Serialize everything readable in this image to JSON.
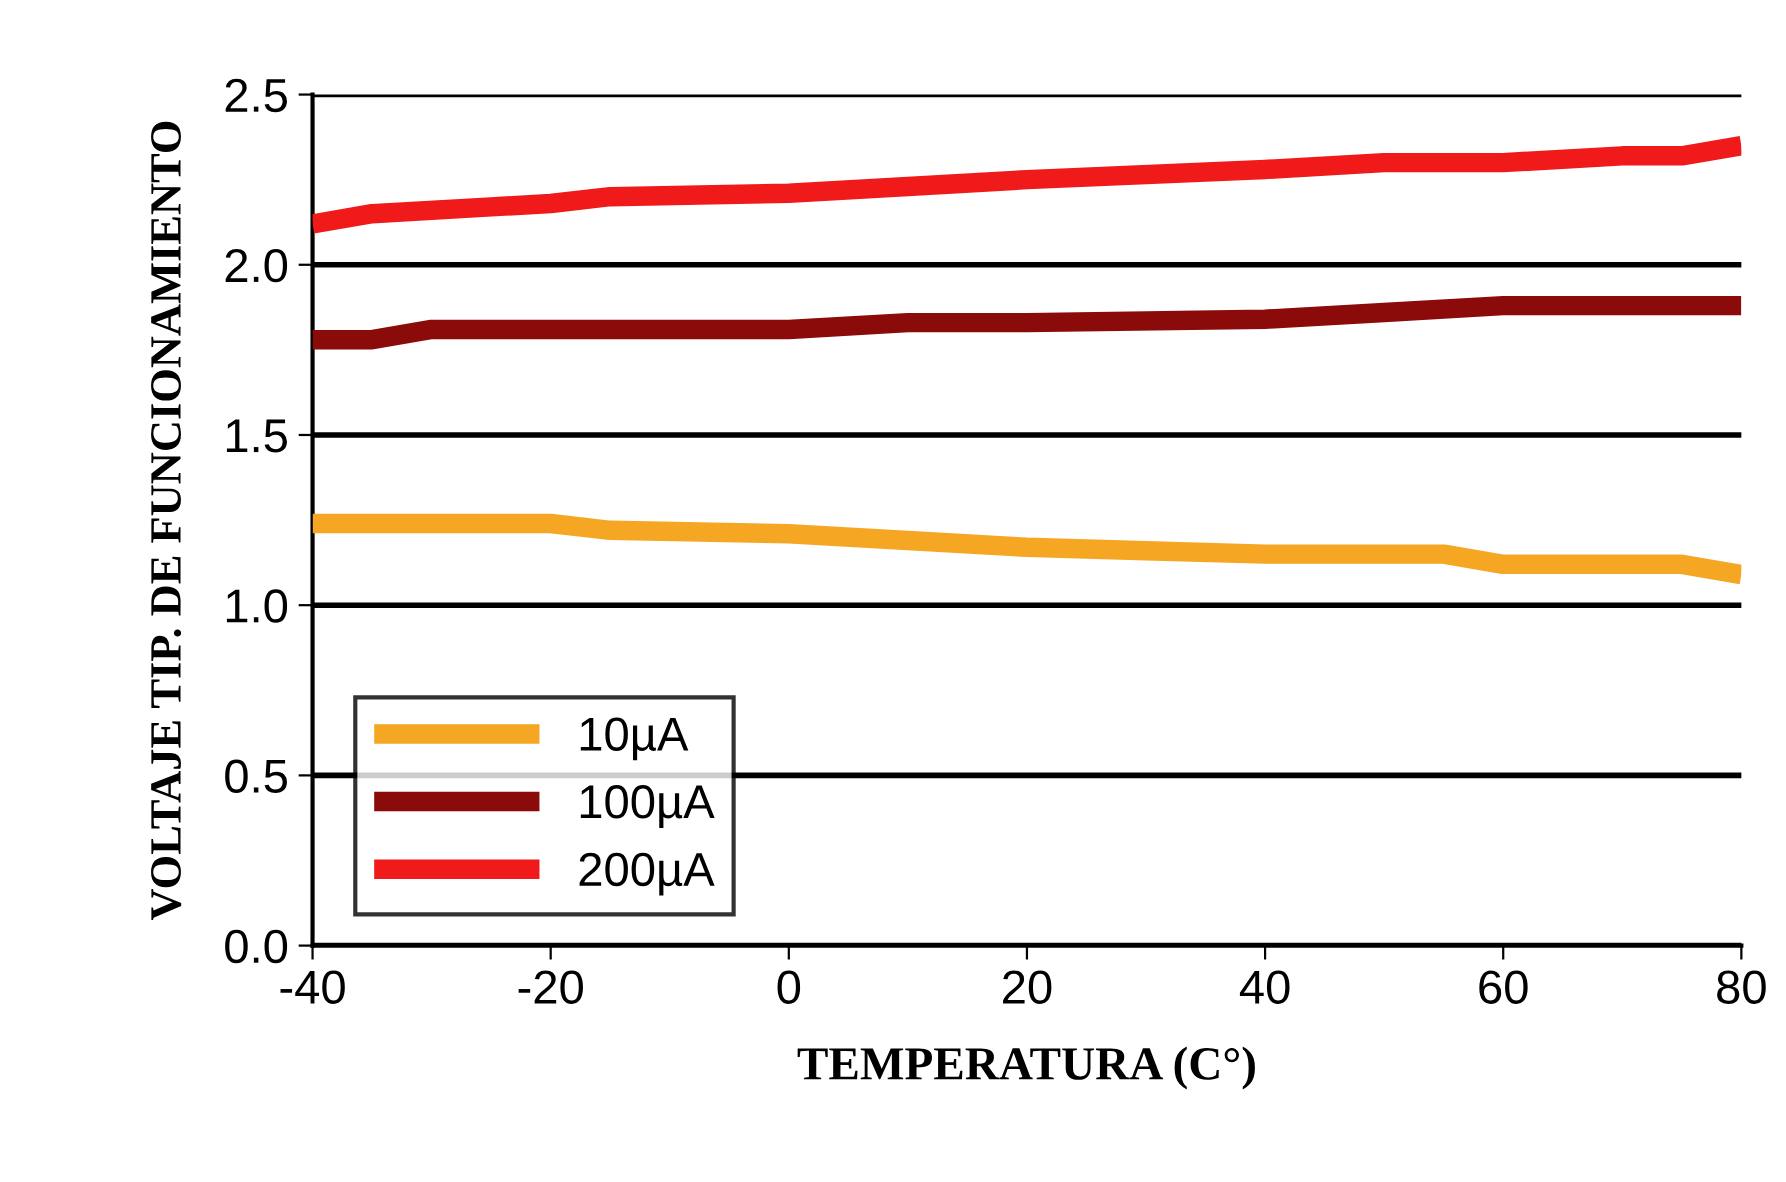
{
  "chart_data": {
    "type": "line",
    "xlabel": "TEMPERATURA (C°)",
    "ylabel": "VOLTAJE TIP. DE FUNCIONAMIENTO",
    "xlim": [
      -40,
      80
    ],
    "xticks": [
      {
        "value": -40,
        "label": "-40"
      },
      {
        "value": -20,
        "label": "-20"
      },
      0,
      20,
      40,
      60,
      80
    ],
    "ylim": [
      0,
      2.5
    ],
    "yticks": [
      {
        "value": 0,
        "label": "0.0"
      },
      0.5,
      {
        "value": 1,
        "label": "1.0"
      },
      1.5,
      {
        "value": 2,
        "label": "2.0"
      },
      2.5
    ],
    "grid": "y",
    "legend": "bottom left",
    "line_style": "solid",
    "series": [
      {
        "name": "10µA",
        "color": "#f5a623",
        "x": [
          -40,
          -20,
          -15,
          0,
          10,
          20,
          30,
          40,
          55,
          60,
          75,
          80
        ],
        "values": [
          1.24,
          1.24,
          1.22,
          1.21,
          1.19,
          1.17,
          1.16,
          1.15,
          1.15,
          1.12,
          1.12,
          1.09
        ]
      },
      {
        "name": "100µA",
        "color": "#8b0a0a",
        "x": [
          -40,
          -35,
          -30,
          -20,
          0,
          10,
          20,
          40,
          50,
          60,
          80
        ],
        "values": [
          1.78,
          1.78,
          1.81,
          1.81,
          1.81,
          1.83,
          1.83,
          1.84,
          1.86,
          1.88,
          1.88
        ]
      },
      {
        "name": "200µA",
        "color": "#f01a1a",
        "x": [
          -40,
          -35,
          -25,
          -20,
          -15,
          0,
          10,
          20,
          40,
          50,
          60,
          70,
          75,
          80
        ],
        "values": [
          2.12,
          2.15,
          2.17,
          2.18,
          2.2,
          2.21,
          2.23,
          2.25,
          2.28,
          2.3,
          2.3,
          2.32,
          2.32,
          2.35
        ]
      }
    ]
  }
}
